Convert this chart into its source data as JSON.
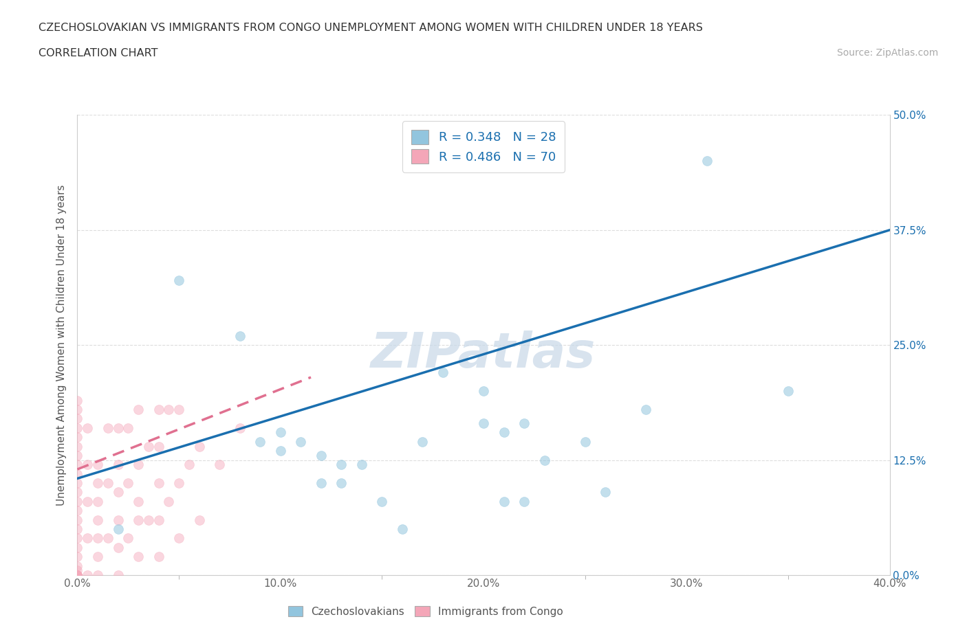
{
  "title_line1": "CZECHOSLOVAKIAN VS IMMIGRANTS FROM CONGO UNEMPLOYMENT AMONG WOMEN WITH CHILDREN UNDER 18 YEARS",
  "title_line2": "CORRELATION CHART",
  "source_text": "Source: ZipAtlas.com",
  "ylabel": "Unemployment Among Women with Children Under 18 years",
  "xlim": [
    0.0,
    0.4
  ],
  "ylim": [
    0.0,
    0.5
  ],
  "xtick_labels": [
    "0.0%",
    "",
    "",
    "",
    "",
    "10.0%",
    "",
    "",
    "",
    "",
    "20.0%",
    "",
    "",
    "",
    "",
    "30.0%",
    "",
    "",
    "",
    "",
    "40.0%"
  ],
  "xtick_vals": [
    0.0,
    0.02,
    0.04,
    0.06,
    0.08,
    0.1,
    0.12,
    0.14,
    0.16,
    0.18,
    0.2,
    0.22,
    0.24,
    0.26,
    0.28,
    0.3,
    0.32,
    0.34,
    0.36,
    0.38,
    0.4
  ],
  "xtick_major_labels": [
    "0.0%",
    "10.0%",
    "20.0%",
    "30.0%",
    "40.0%"
  ],
  "xtick_major_vals": [
    0.0,
    0.1,
    0.2,
    0.3,
    0.4
  ],
  "ytick_labels": [
    "0.0%",
    "12.5%",
    "25.0%",
    "37.5%",
    "50.0%"
  ],
  "ytick_vals": [
    0.0,
    0.125,
    0.25,
    0.375,
    0.5
  ],
  "R_czech": 0.348,
  "N_czech": 28,
  "R_congo": 0.486,
  "N_congo": 70,
  "czech_color": "#92c5de",
  "congo_color": "#f4a6b8",
  "trend_czech_color": "#1a6faf",
  "trend_congo_color": "#e07090",
  "watermark": "ZIPatlas",
  "watermark_color": "#c8d8e8",
  "legend_label_czech": "Czechoslovakians",
  "legend_label_congo": "Immigrants from Congo",
  "czech_scatter_x": [
    0.02,
    0.05,
    0.08,
    0.09,
    0.1,
    0.1,
    0.11,
    0.12,
    0.12,
    0.13,
    0.13,
    0.14,
    0.15,
    0.16,
    0.17,
    0.18,
    0.2,
    0.2,
    0.21,
    0.21,
    0.22,
    0.22,
    0.23,
    0.25,
    0.26,
    0.28,
    0.31,
    0.35
  ],
  "czech_scatter_y": [
    0.05,
    0.32,
    0.26,
    0.145,
    0.135,
    0.155,
    0.145,
    0.1,
    0.13,
    0.1,
    0.12,
    0.12,
    0.08,
    0.05,
    0.145,
    0.22,
    0.2,
    0.165,
    0.08,
    0.155,
    0.08,
    0.165,
    0.125,
    0.145,
    0.09,
    0.18,
    0.45,
    0.2
  ],
  "congo_scatter_x": [
    0.0,
    0.0,
    0.0,
    0.0,
    0.0,
    0.0,
    0.0,
    0.0,
    0.0,
    0.0,
    0.0,
    0.0,
    0.0,
    0.0,
    0.0,
    0.0,
    0.0,
    0.0,
    0.0,
    0.0,
    0.0,
    0.0,
    0.0,
    0.0,
    0.005,
    0.005,
    0.005,
    0.005,
    0.005,
    0.01,
    0.01,
    0.01,
    0.01,
    0.01,
    0.01,
    0.01,
    0.015,
    0.015,
    0.015,
    0.02,
    0.02,
    0.02,
    0.02,
    0.02,
    0.02,
    0.025,
    0.025,
    0.025,
    0.03,
    0.03,
    0.03,
    0.03,
    0.03,
    0.035,
    0.035,
    0.04,
    0.04,
    0.04,
    0.04,
    0.04,
    0.045,
    0.045,
    0.05,
    0.05,
    0.05,
    0.055,
    0.06,
    0.06,
    0.07,
    0.08
  ],
  "congo_scatter_y": [
    0.0,
    0.0,
    0.0,
    0.0,
    0.005,
    0.01,
    0.02,
    0.03,
    0.04,
    0.05,
    0.06,
    0.07,
    0.08,
    0.09,
    0.1,
    0.11,
    0.12,
    0.13,
    0.14,
    0.15,
    0.16,
    0.17,
    0.18,
    0.19,
    0.0,
    0.04,
    0.08,
    0.12,
    0.16,
    0.0,
    0.02,
    0.04,
    0.06,
    0.08,
    0.1,
    0.12,
    0.04,
    0.1,
    0.16,
    0.0,
    0.03,
    0.06,
    0.09,
    0.12,
    0.16,
    0.04,
    0.1,
    0.16,
    0.02,
    0.06,
    0.08,
    0.12,
    0.18,
    0.06,
    0.14,
    0.02,
    0.06,
    0.1,
    0.14,
    0.18,
    0.08,
    0.18,
    0.04,
    0.1,
    0.18,
    0.12,
    0.06,
    0.14,
    0.12,
    0.16
  ],
  "grid_color": "#dddddd",
  "fig_bg_color": "#ffffff",
  "marker_size_czech": 100,
  "marker_size_congo": 100,
  "marker_alpha_czech": 0.55,
  "marker_alpha_congo": 0.45,
  "trend_linewidth": 2.5,
  "trend_czech_x0": 0.0,
  "trend_czech_x1": 0.4,
  "trend_czech_y0": 0.105,
  "trend_czech_y1": 0.375,
  "trend_congo_x0": 0.0,
  "trend_congo_x1": 0.115,
  "trend_congo_y0": 0.115,
  "trend_congo_y1": 0.215
}
